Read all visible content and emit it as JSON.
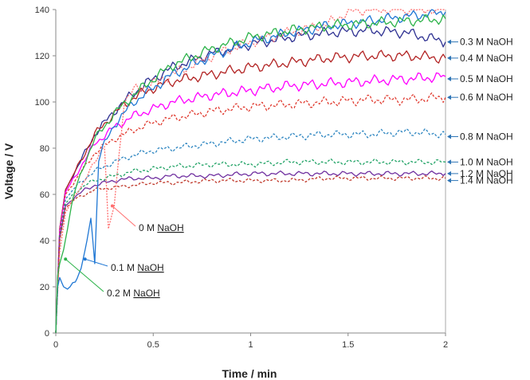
{
  "chart_data": {
    "type": "line",
    "title": "",
    "xlabel": "Time / min",
    "ylabel": "Voltage / V",
    "xlim": [
      0,
      2
    ],
    "ylim": [
      0,
      140
    ],
    "xticks": [
      0,
      0.5,
      1,
      1.5,
      2
    ],
    "xtick_labels": [
      "0",
      "0.5",
      "1",
      "1.5",
      "2"
    ],
    "yticks": [
      0,
      20,
      40,
      60,
      80,
      100,
      120,
      140
    ],
    "grid": false,
    "legend": "right-side labels",
    "series": [
      {
        "name": "0.3 M NaOH",
        "color": "#2e3192",
        "dash": "",
        "label_y": 126,
        "x": [
          0,
          0.02,
          0.05,
          0.1,
          0.15,
          0.2,
          0.3,
          0.4,
          0.5,
          0.6,
          0.8,
          1.0,
          1.2,
          1.4,
          1.6,
          1.8,
          2.0
        ],
        "y": [
          0,
          45,
          62,
          70,
          78,
          86,
          96,
          104,
          110,
          115,
          121,
          125,
          128,
          130,
          131,
          130,
          126
        ]
      },
      {
        "name": "0.4 M NaOH",
        "color": "#b22222",
        "dash": "",
        "label_y": 119,
        "x": [
          0,
          0.02,
          0.05,
          0.1,
          0.15,
          0.2,
          0.3,
          0.4,
          0.5,
          0.6,
          0.8,
          1.0,
          1.2,
          1.4,
          1.6,
          1.8,
          2.0
        ],
        "y": [
          0,
          45,
          62,
          70,
          78,
          86,
          95,
          102,
          106,
          109,
          112,
          115,
          117,
          119,
          120,
          120,
          119
        ]
      },
      {
        "name": "0.5 M NaOH",
        "color": "#ff00ff",
        "dash": "",
        "label_y": 110,
        "x": [
          0,
          0.02,
          0.05,
          0.1,
          0.15,
          0.2,
          0.3,
          0.4,
          0.5,
          0.6,
          0.8,
          1.0,
          1.2,
          1.4,
          1.6,
          1.8,
          2.0
        ],
        "y": [
          0,
          44,
          61,
          68,
          75,
          82,
          89,
          94,
          97,
          100,
          103,
          105,
          107,
          108,
          109,
          110,
          111
        ]
      },
      {
        "name": "0.6 M NaOH",
        "color": "#e03c31",
        "dash": "3,2",
        "label_y": 102,
        "x": [
          0,
          0.02,
          0.05,
          0.1,
          0.15,
          0.2,
          0.3,
          0.4,
          0.5,
          0.6,
          0.8,
          1.0,
          1.2,
          1.4,
          1.6,
          1.8,
          2.0
        ],
        "y": [
          0,
          43,
          60,
          66,
          72,
          78,
          84,
          88,
          91,
          93,
          96,
          98,
          99,
          100,
          101,
          101,
          102
        ]
      },
      {
        "name": "0.8 M NaOH",
        "color": "#2e86c1",
        "dash": "3,2",
        "label_y": 85,
        "x": [
          0,
          0.02,
          0.05,
          0.1,
          0.15,
          0.2,
          0.3,
          0.4,
          0.5,
          0.6,
          0.8,
          1.0,
          1.2,
          1.4,
          1.6,
          1.8,
          2.0
        ],
        "y": [
          0,
          42,
          58,
          63,
          67,
          70,
          74,
          77,
          79,
          80,
          82,
          84,
          85,
          86,
          86,
          87,
          86
        ]
      },
      {
        "name": "1.0 M NaOH",
        "color": "#21a366",
        "dash": "3,2",
        "label_y": 74,
        "x": [
          0,
          0.02,
          0.05,
          0.1,
          0.15,
          0.2,
          0.3,
          0.4,
          0.5,
          0.6,
          0.8,
          1.0,
          1.2,
          1.4,
          1.6,
          1.8,
          2.0
        ],
        "y": [
          0,
          42,
          56,
          61,
          64,
          66,
          68,
          70,
          71,
          72,
          73,
          73,
          74,
          74,
          74,
          74,
          74
        ]
      },
      {
        "name": "1.2 M NaOH",
        "color": "#7030a0",
        "dash": "",
        "label_y": 69,
        "x": [
          0,
          0.02,
          0.05,
          0.1,
          0.15,
          0.2,
          0.3,
          0.4,
          0.5,
          0.6,
          0.8,
          1.0,
          1.2,
          1.4,
          1.6,
          1.8,
          2.0
        ],
        "y": [
          0,
          41,
          55,
          59,
          62,
          64,
          66,
          67,
          67,
          68,
          68,
          69,
          69,
          69,
          69,
          69,
          69
        ]
      },
      {
        "name": "1.4 M NaOH",
        "color": "#c0392b",
        "dash": "3,2",
        "label_y": 66,
        "x": [
          0,
          0.02,
          0.05,
          0.1,
          0.15,
          0.2,
          0.3,
          0.4,
          0.5,
          0.6,
          0.8,
          1.0,
          1.2,
          1.4,
          1.6,
          1.8,
          2.0
        ],
        "y": [
          0,
          40,
          54,
          58,
          60,
          62,
          63,
          64,
          65,
          65,
          66,
          66,
          66,
          67,
          67,
          67,
          67
        ]
      },
      {
        "name": "0 M NaOH",
        "color": "#ff6f6f",
        "dash": "2,1.5",
        "label_y": null,
        "x": [
          0,
          0.02,
          0.05,
          0.1,
          0.15,
          0.2,
          0.25,
          0.27,
          0.3,
          0.35,
          0.4,
          0.5,
          0.6,
          0.8,
          1.0,
          1.2,
          1.4,
          1.5,
          1.6,
          1.8,
          2.0
        ],
        "y": [
          0,
          35,
          52,
          60,
          66,
          74,
          82,
          45,
          55,
          100,
          105,
          108,
          112,
          120,
          126,
          130,
          134,
          139,
          140,
          140,
          140
        ]
      },
      {
        "name": "0.1 M NaOH",
        "color": "#1f77d4",
        "dash": "",
        "label_y": null,
        "x": [
          0,
          0.01,
          0.02,
          0.04,
          0.06,
          0.1,
          0.13,
          0.16,
          0.18,
          0.2,
          0.22,
          0.25,
          0.3,
          0.4,
          0.5,
          0.6,
          0.8,
          1.0,
          1.2,
          1.4,
          1.6,
          1.8,
          2.0
        ],
        "y": [
          0,
          20,
          24,
          20,
          19,
          22,
          28,
          40,
          50,
          30,
          75,
          82,
          90,
          100,
          106,
          112,
          120,
          126,
          130,
          133,
          135,
          137,
          139
        ]
      },
      {
        "name": "0.2 M NaOH",
        "color": "#2db34a",
        "dash": "",
        "label_y": null,
        "x": [
          0,
          0.01,
          0.02,
          0.04,
          0.06,
          0.08,
          0.1,
          0.15,
          0.2,
          0.3,
          0.4,
          0.5,
          0.6,
          0.8,
          1.0,
          1.2,
          1.4,
          1.6,
          1.8,
          2.0
        ],
        "y": [
          0,
          25,
          30,
          36,
          45,
          55,
          62,
          74,
          84,
          95,
          103,
          110,
          116,
          123,
          128,
          131,
          133,
          134,
          135,
          136
        ]
      }
    ],
    "annotations": [
      {
        "text_main": "0 M ",
        "text_u": "NaOH",
        "series": "0 M NaOH",
        "at_x": 0.29,
        "at_y": 55
      },
      {
        "text_main": "0.1 M ",
        "text_u": "NaOH",
        "series": "0.1 M NaOH",
        "at_x": 0.15,
        "at_y": 32
      },
      {
        "text_main": "0.2 M ",
        "text_u": "NaOH",
        "series": "0.2 M NaOH",
        "at_x": 0.05,
        "at_y": 32
      }
    ]
  }
}
